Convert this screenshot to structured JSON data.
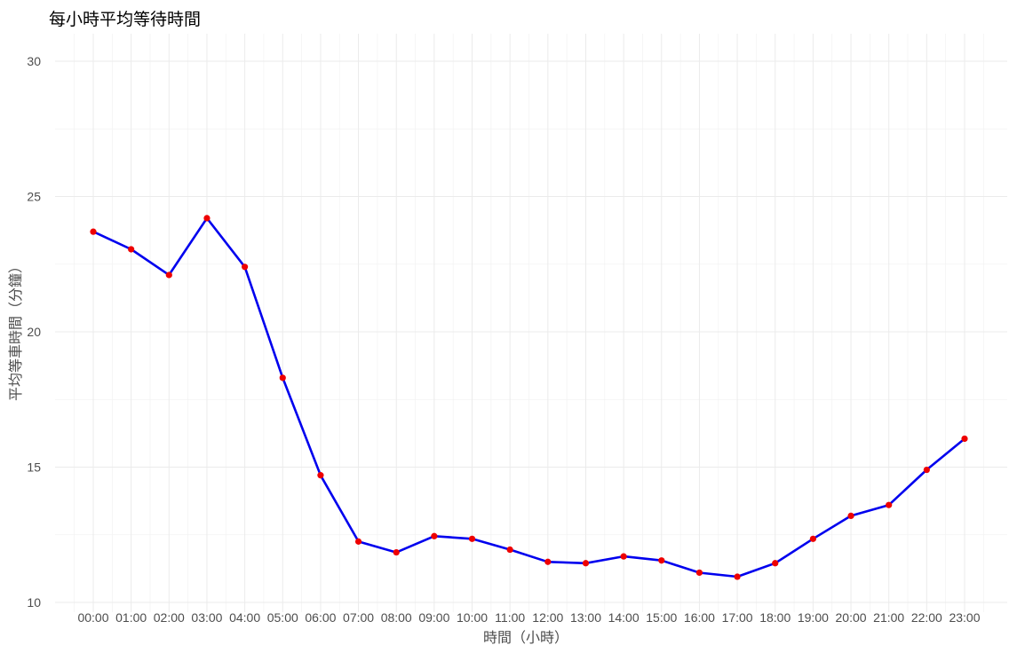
{
  "chart_data": {
    "type": "line",
    "title": "每小時平均等待時間",
    "xlabel": "時間（小時）",
    "ylabel": "平均等車時間（分鐘）",
    "categories": [
      "00:00",
      "01:00",
      "02:00",
      "03:00",
      "04:00",
      "05:00",
      "06:00",
      "07:00",
      "08:00",
      "09:00",
      "10:00",
      "11:00",
      "12:00",
      "13:00",
      "14:00",
      "15:00",
      "16:00",
      "17:00",
      "18:00",
      "19:00",
      "20:00",
      "21:00",
      "22:00",
      "23:00"
    ],
    "series": [
      {
        "values": [
          23.7,
          23.05,
          22.1,
          24.2,
          22.4,
          18.3,
          14.7,
          12.25,
          11.85,
          12.45,
          12.35,
          11.95,
          11.5,
          11.45,
          11.7,
          11.55,
          11.1,
          10.95,
          11.45,
          12.35,
          13.2,
          13.6,
          14.9,
          16.05
        ],
        "line_color": "#0000ee",
        "point_color": "#ee0000"
      }
    ],
    "ylim": [
      10,
      30
    ],
    "yticks": [
      10,
      15,
      20,
      25,
      30
    ],
    "grid": true,
    "legend": "none"
  }
}
